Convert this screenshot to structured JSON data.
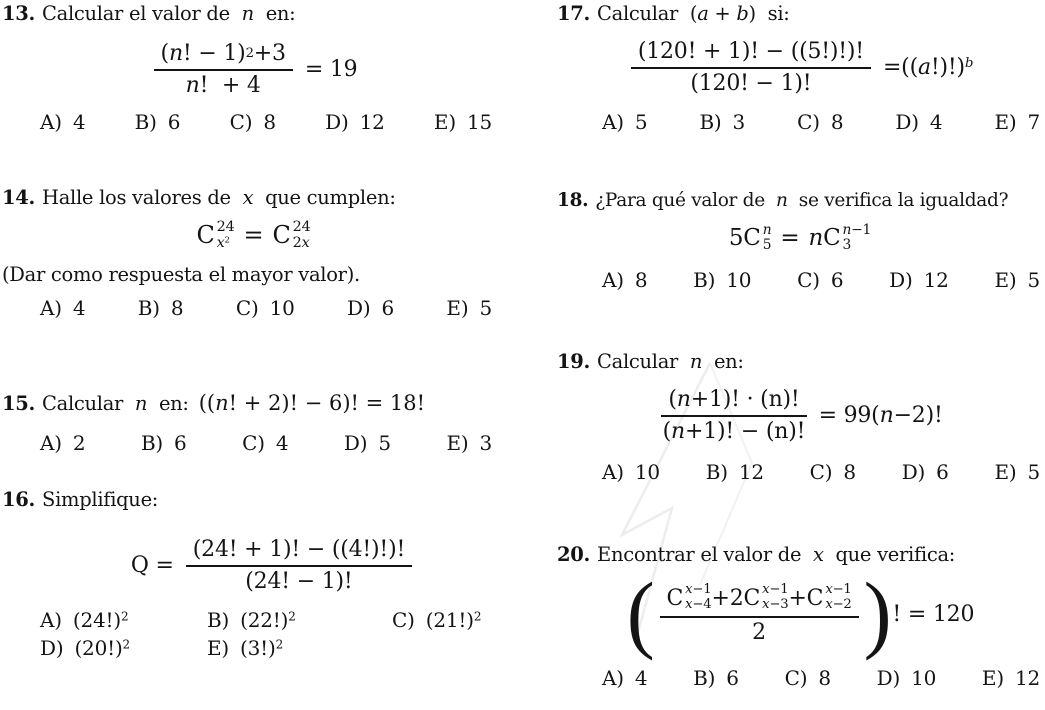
{
  "doc": {
    "background": "#ffffff",
    "text_color": "#141414",
    "watermark_color": "#ededed"
  },
  "p13": {
    "number": "13.",
    "title": [
      {
        "t": "Calcular el valor de  ",
        "s": "u"
      },
      {
        "t": "n",
        "s": "i"
      },
      {
        "t": "  en:",
        "s": "u"
      }
    ],
    "eq": {
      "num": [
        {
          "t": "(",
          "s": "u"
        },
        {
          "t": "n",
          "s": "i"
        },
        {
          "t": "! − 1)",
          "s": "u"
        },
        {
          "t": "2",
          "s": "sup"
        },
        {
          "t": " +3",
          "s": "u"
        }
      ],
      "den": [
        {
          "t": "n",
          "s": "i"
        },
        {
          "t": "!  + 4",
          "s": "u"
        }
      ],
      "rhs": [
        {
          "t": "= 19",
          "s": "u"
        }
      ]
    },
    "options": [
      {
        "k": "A)",
        "v": [
          {
            "t": "4",
            "s": "u"
          }
        ]
      },
      {
        "k": "B)",
        "v": [
          {
            "t": "6",
            "s": "u"
          }
        ]
      },
      {
        "k": "C)",
        "v": [
          {
            "t": "8",
            "s": "u"
          }
        ]
      },
      {
        "k": "D)",
        "v": [
          {
            "t": "12",
            "s": "u"
          }
        ]
      },
      {
        "k": "E)",
        "v": [
          {
            "t": "15",
            "s": "u"
          }
        ]
      }
    ]
  },
  "p14": {
    "number": "14.",
    "title": [
      {
        "t": "Halle los valores de  ",
        "s": "u"
      },
      {
        "t": "x",
        "s": "i"
      },
      {
        "t": "  que cumplen:",
        "s": "u"
      }
    ],
    "eq": {
      "c1": {
        "base": "C",
        "sup": [
          {
            "t": "24",
            "s": "u"
          }
        ],
        "sub": [
          {
            "t": "x",
            "s": "i"
          },
          {
            "t": "2",
            "s": "sup"
          }
        ]
      },
      "mid": [
        {
          "t": "=",
          "s": "u"
        }
      ],
      "c2": {
        "base": "C",
        "sup": [
          {
            "t": "24",
            "s": "u"
          }
        ],
        "sub": [
          {
            "t": "2",
            "s": "u"
          },
          {
            "t": "x",
            "s": "i"
          }
        ]
      }
    },
    "note": "(Dar como respuesta el mayor valor).",
    "options": [
      {
        "k": "A)",
        "v": [
          {
            "t": "4",
            "s": "u"
          }
        ]
      },
      {
        "k": "B)",
        "v": [
          {
            "t": "8",
            "s": "u"
          }
        ]
      },
      {
        "k": "C)",
        "v": [
          {
            "t": "10",
            "s": "u"
          }
        ]
      },
      {
        "k": "D)",
        "v": [
          {
            "t": "6",
            "s": "u"
          }
        ]
      },
      {
        "k": "E)",
        "v": [
          {
            "t": "5",
            "s": "u"
          }
        ]
      }
    ]
  },
  "p15": {
    "number": "15.",
    "title": [
      {
        "t": "Calcular  ",
        "s": "u"
      },
      {
        "t": "n",
        "s": "i"
      },
      {
        "t": "  en:",
        "s": "u"
      }
    ],
    "inline_eq": [
      {
        "t": "((",
        "s": "u"
      },
      {
        "t": "n",
        "s": "i"
      },
      {
        "t": "! + 2)! − 6)! = 18!",
        "s": "u"
      }
    ],
    "options": [
      {
        "k": "A)",
        "v": [
          {
            "t": "2",
            "s": "u"
          }
        ]
      },
      {
        "k": "B)",
        "v": [
          {
            "t": "6",
            "s": "u"
          }
        ]
      },
      {
        "k": "C)",
        "v": [
          {
            "t": "4",
            "s": "u"
          }
        ]
      },
      {
        "k": "D)",
        "v": [
          {
            "t": "5",
            "s": "u"
          }
        ]
      },
      {
        "k": "E)",
        "v": [
          {
            "t": "3",
            "s": "u"
          }
        ]
      }
    ]
  },
  "p16": {
    "number": "16.",
    "title": [
      {
        "t": "Simplifique:",
        "s": "u"
      }
    ],
    "eq": {
      "lhs": [
        {
          "t": "Q =",
          "s": "u"
        }
      ],
      "num": [
        {
          "t": "(24! + 1)! − ((4!)!)!",
          "s": "u"
        }
      ],
      "den": [
        {
          "t": "(24! − 1)!",
          "s": "u"
        }
      ]
    },
    "options": [
      {
        "k": "A)",
        "v": [
          {
            "t": "(24!)",
            "s": "u"
          },
          {
            "t": "2",
            "s": "sup"
          }
        ]
      },
      {
        "k": "B)",
        "v": [
          {
            "t": "(22!)",
            "s": "u"
          },
          {
            "t": "2",
            "s": "sup"
          }
        ]
      },
      {
        "k": "C)",
        "v": [
          {
            "t": "(21!)",
            "s": "u"
          },
          {
            "t": "2",
            "s": "sup"
          }
        ]
      },
      {
        "k": "D)",
        "v": [
          {
            "t": "(20!)",
            "s": "u"
          },
          {
            "t": "2",
            "s": "sup"
          }
        ]
      },
      {
        "k": "E)",
        "v": [
          {
            "t": "(3!)",
            "s": "u"
          },
          {
            "t": "2",
            "s": "sup"
          }
        ]
      }
    ]
  },
  "p17": {
    "number": "17.",
    "title": [
      {
        "t": "Calcular  (",
        "s": "u"
      },
      {
        "t": "a",
        "s": "i"
      },
      {
        "t": " + ",
        "s": "u"
      },
      {
        "t": "b",
        "s": "i"
      },
      {
        "t": ")  si:",
        "s": "u"
      }
    ],
    "eq": {
      "num": [
        {
          "t": "(120! + 1)! − ((5!)!)!",
          "s": "u"
        }
      ],
      "den": [
        {
          "t": "(120! − 1)!",
          "s": "u"
        }
      ],
      "rhs": [
        {
          "t": "=((",
          "s": "u"
        },
        {
          "t": "a",
          "s": "i"
        },
        {
          "t": "!)!)",
          "s": "u"
        },
        {
          "t": "b",
          "s": "supi"
        }
      ]
    },
    "options": [
      {
        "k": "A)",
        "v": [
          {
            "t": "5",
            "s": "u"
          }
        ]
      },
      {
        "k": "B)",
        "v": [
          {
            "t": "3",
            "s": "u"
          }
        ]
      },
      {
        "k": "C)",
        "v": [
          {
            "t": "8",
            "s": "u"
          }
        ]
      },
      {
        "k": "D)",
        "v": [
          {
            "t": "4",
            "s": "u"
          }
        ]
      },
      {
        "k": "E)",
        "v": [
          {
            "t": "7",
            "s": "u"
          }
        ]
      }
    ]
  },
  "p18": {
    "number": "18.",
    "title": [
      {
        "t": "¿Para qué valor de  ",
        "s": "u"
      },
      {
        "t": "n",
        "s": "i"
      },
      {
        "t": "  se verifica la igualdad?",
        "s": "u"
      }
    ],
    "eq": {
      "coef1": [
        {
          "t": "5",
          "s": "u"
        }
      ],
      "c1": {
        "base": "C",
        "sup": [
          {
            "t": "n",
            "s": "i"
          }
        ],
        "sub": [
          {
            "t": "5",
            "s": "u"
          }
        ]
      },
      "mid": [
        {
          "t": "=",
          "s": "u"
        }
      ],
      "coef2": [
        {
          "t": "n",
          "s": "i"
        }
      ],
      "c2": {
        "base": "C",
        "sup": [
          {
            "t": "n",
            "s": "i"
          },
          {
            "t": "−1",
            "s": "u"
          }
        ],
        "sub": [
          {
            "t": "3",
            "s": "u"
          }
        ]
      }
    },
    "options": [
      {
        "k": "A)",
        "v": [
          {
            "t": "8",
            "s": "u"
          }
        ]
      },
      {
        "k": "B)",
        "v": [
          {
            "t": "10",
            "s": "u"
          }
        ]
      },
      {
        "k": "C)",
        "v": [
          {
            "t": "6",
            "s": "u"
          }
        ]
      },
      {
        "k": "D)",
        "v": [
          {
            "t": "12",
            "s": "u"
          }
        ]
      },
      {
        "k": "E)",
        "v": [
          {
            "t": "5",
            "s": "u"
          }
        ]
      }
    ]
  },
  "p19": {
    "number": "19.",
    "title": [
      {
        "t": "Calcular  ",
        "s": "u"
      },
      {
        "t": "n",
        "s": "i"
      },
      {
        "t": "  en:",
        "s": "u"
      }
    ],
    "eq": {
      "num": [
        {
          "t": "(",
          "s": "u"
        },
        {
          "t": "n",
          "s": "i"
        },
        {
          "t": "+1)! · (n)!",
          "s": "u"
        }
      ],
      "den": [
        {
          "t": "(",
          "s": "u"
        },
        {
          "t": "n",
          "s": "i"
        },
        {
          "t": "+1)! − (n)!",
          "s": "u"
        }
      ],
      "rhs": [
        {
          "t": "= 99(",
          "s": "u"
        },
        {
          "t": "n",
          "s": "i"
        },
        {
          "t": "−2)!",
          "s": "u"
        }
      ]
    },
    "options": [
      {
        "k": "A)",
        "v": [
          {
            "t": "10",
            "s": "u"
          }
        ]
      },
      {
        "k": "B)",
        "v": [
          {
            "t": "12",
            "s": "u"
          }
        ]
      },
      {
        "k": "C)",
        "v": [
          {
            "t": "8",
            "s": "u"
          }
        ]
      },
      {
        "k": "D)",
        "v": [
          {
            "t": "6",
            "s": "u"
          }
        ]
      },
      {
        "k": "E)",
        "v": [
          {
            "t": "5",
            "s": "u"
          }
        ]
      }
    ]
  },
  "p20": {
    "number": "20.",
    "title": [
      {
        "t": "Encontrar el valor de  ",
        "s": "u"
      },
      {
        "t": "x",
        "s": "i"
      },
      {
        "t": "  que verifica:",
        "s": "u"
      }
    ],
    "eq": {
      "lparen": "(",
      "rparen": ")",
      "t1": {
        "pre": [],
        "base": "C",
        "sup": [
          {
            "t": "x",
            "s": "i"
          },
          {
            "t": "−1",
            "s": "u"
          }
        ],
        "sub": [
          {
            "t": "x",
            "s": "i"
          },
          {
            "t": "−4",
            "s": "u"
          }
        ]
      },
      "t2": {
        "pre": [
          {
            "t": "+2",
            "s": "u"
          }
        ],
        "base": "C",
        "sup": [
          {
            "t": "x",
            "s": "i"
          },
          {
            "t": "−1",
            "s": "u"
          }
        ],
        "sub": [
          {
            "t": "x",
            "s": "i"
          },
          {
            "t": "−3",
            "s": "u"
          }
        ]
      },
      "t3": {
        "pre": [
          {
            "t": "+",
            "s": "u"
          }
        ],
        "base": "C",
        "sup": [
          {
            "t": "x",
            "s": "i"
          },
          {
            "t": "−1",
            "s": "u"
          }
        ],
        "sub": [
          {
            "t": "x",
            "s": "i"
          },
          {
            "t": "−2",
            "s": "u"
          }
        ]
      },
      "den": [
        {
          "t": "2",
          "s": "u"
        }
      ],
      "after": [
        {
          "t": "! = 120",
          "s": "u"
        }
      ]
    },
    "options": [
      {
        "k": "A)",
        "v": [
          {
            "t": "4",
            "s": "u"
          }
        ]
      },
      {
        "k": "B)",
        "v": [
          {
            "t": "6",
            "s": "u"
          }
        ]
      },
      {
        "k": "C)",
        "v": [
          {
            "t": "8",
            "s": "u"
          }
        ]
      },
      {
        "k": "D)",
        "v": [
          {
            "t": "10",
            "s": "u"
          }
        ]
      },
      {
        "k": "E)",
        "v": [
          {
            "t": "12",
            "s": "u"
          }
        ]
      }
    ]
  }
}
